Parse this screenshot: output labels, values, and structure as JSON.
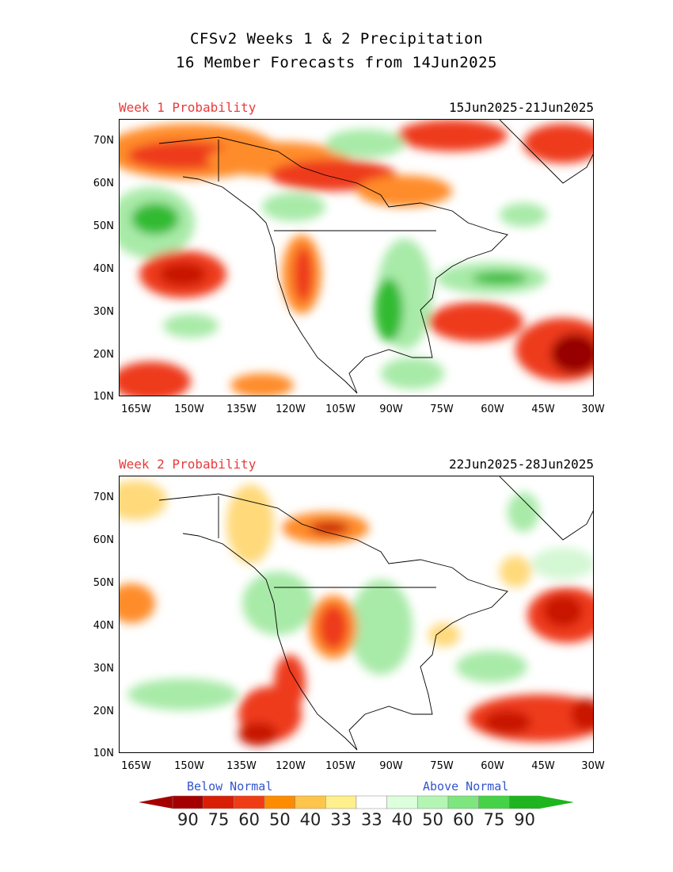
{
  "title": {
    "line1": "CFSv2 Weeks 1 & 2 Precipitation",
    "line2": "16 Member Forecasts from 14Jun2025"
  },
  "panels": [
    {
      "label": "Week 1 Probability",
      "dates": "15Jun2025-21Jun2025"
    },
    {
      "label": "Week 2 Probability",
      "dates": "22Jun2025-28Jun2025"
    }
  ],
  "axes": {
    "lat_labels": [
      "70N",
      "60N",
      "50N",
      "40N",
      "30N",
      "20N",
      "10N"
    ],
    "lon_labels": [
      "165W",
      "150W",
      "135W",
      "120W",
      "105W",
      "90W",
      "75W",
      "60W",
      "45W",
      "30W"
    ]
  },
  "legend": {
    "below": "Below Normal",
    "above": "Above Normal",
    "values": [
      "90",
      "75",
      "60",
      "50",
      "40",
      "33",
      "33",
      "40",
      "50",
      "60",
      "75",
      "90"
    ],
    "colors": [
      "#a50000",
      "#d81e05",
      "#f03c14",
      "#ff8c00",
      "#ffc44a",
      "#fff08c",
      "#ffffff",
      "#dcffdc",
      "#b4f5b4",
      "#7ee67e",
      "#46d246",
      "#1eb41e"
    ]
  },
  "colors": {
    "below": [
      "#ffd97a",
      "#ff8c2a",
      "#ee3a1a",
      "#c81400",
      "#960000"
    ],
    "above": [
      "#d4f7d4",
      "#a8eaa8",
      "#6ed66e",
      "#32bb32",
      "#129612"
    ]
  }
}
